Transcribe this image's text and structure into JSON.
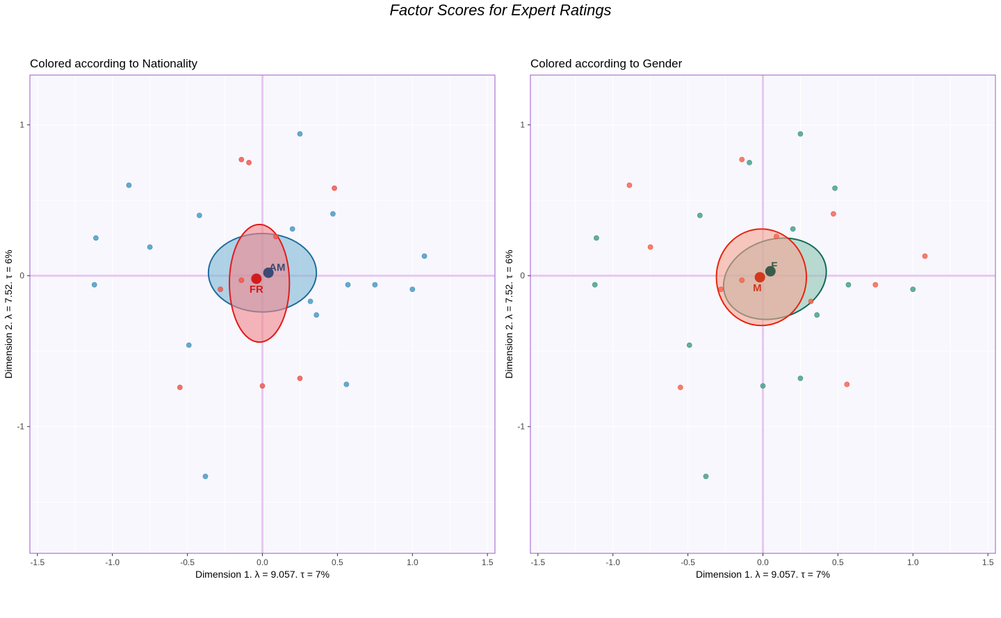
{
  "title": "Factor Scores for Expert Ratings",
  "colors": {
    "panel_bg": "#f8f7fd",
    "border": "#9b59c9",
    "origin_line": "#e6c8ef",
    "grid": "#ffffff"
  },
  "chart_data": [
    {
      "type": "scatter",
      "title": "Colored according to Nationality",
      "xlabel": "Dimension 1.   λ = 9.057.  τ = 7%",
      "ylabel": "Dimension 2.   λ = 7.52.  τ = 6%",
      "xlim": [
        -1.55,
        1.55
      ],
      "ylim": [
        -1.84,
        1.33
      ],
      "xticks": [
        -1.5,
        -1.0,
        -0.5,
        0.0,
        0.5,
        1.0,
        1.5
      ],
      "xtick_labels": [
        "-1.5",
        "-1.0",
        "-0.5",
        "0.0",
        "0.5",
        "1.0",
        "1.5"
      ],
      "yticks": [
        -1,
        0,
        1
      ],
      "ytick_labels": [
        "-1",
        "0",
        "1"
      ],
      "grid": true,
      "series": [
        {
          "name": "AM",
          "color": "#4a9cc4",
          "mean_color": "#3d4a73",
          "fill": "#7fb7d6",
          "stroke": "#1f6d9e",
          "mean": [
            0.04,
            0.02
          ],
          "ellipse": {
            "cx": 0.0,
            "cy": 0.02,
            "rx": 0.36,
            "ry": 0.26,
            "angle": 0
          },
          "points": [
            [
              0.25,
              0.94
            ],
            [
              -0.89,
              0.6
            ],
            [
              -0.42,
              0.4
            ],
            [
              -1.11,
              0.25
            ],
            [
              -0.75,
              0.19
            ],
            [
              0.2,
              0.31
            ],
            [
              0.47,
              0.41
            ],
            [
              1.08,
              0.13
            ],
            [
              0.57,
              -0.06
            ],
            [
              0.75,
              -0.06
            ],
            [
              1.0,
              -0.09
            ],
            [
              -1.12,
              -0.06
            ],
            [
              0.32,
              -0.17
            ],
            [
              0.36,
              -0.26
            ],
            [
              -0.49,
              -0.46
            ],
            [
              0.56,
              -0.72
            ],
            [
              -0.38,
              -1.33
            ]
          ]
        },
        {
          "name": "FR",
          "color": "#ee5a4e",
          "mean_color": "#d01c1c",
          "fill": "#f2868a",
          "stroke": "#e01b1b",
          "mean": [
            -0.04,
            -0.02
          ],
          "ellipse": {
            "cx": -0.02,
            "cy": -0.05,
            "rx": 0.2,
            "ry": 0.39,
            "angle": 0
          },
          "points": [
            [
              -0.14,
              0.77
            ],
            [
              -0.09,
              0.75
            ],
            [
              0.48,
              0.58
            ],
            [
              0.09,
              0.26
            ],
            [
              -0.14,
              -0.03
            ],
            [
              -0.28,
              -0.09
            ],
            [
              -0.55,
              -0.74
            ],
            [
              0.0,
              -0.73
            ],
            [
              0.25,
              -0.68
            ]
          ]
        }
      ]
    },
    {
      "type": "scatter",
      "title": "Colored according to Gender",
      "xlabel": "Dimension 1.   λ = 9.057.  τ = 7%",
      "ylabel": "Dimension 2.   λ = 7.52.  τ = 6%",
      "xlim": [
        -1.55,
        1.55
      ],
      "ylim": [
        -1.84,
        1.33
      ],
      "xticks": [
        -1.5,
        -1.0,
        -0.5,
        0.0,
        0.5,
        1.0,
        1.5
      ],
      "xtick_labels": [
        "-1.5",
        "-1.0",
        "-0.5",
        "0.0",
        "0.5",
        "1.0",
        "1.5"
      ],
      "yticks": [
        -1,
        0,
        1
      ],
      "ytick_labels": [
        "-1",
        "0",
        "1"
      ],
      "grid": true,
      "series": [
        {
          "name": "F",
          "color": "#4aa18c",
          "mean_color": "#3b5b4a",
          "fill": "#8dc5b3",
          "stroke": "#0f6b5a",
          "mean": [
            0.05,
            0.03
          ],
          "ellipse": {
            "cx": 0.08,
            "cy": -0.02,
            "rx": 0.35,
            "ry": 0.26,
            "angle": -18
          },
          "points": [
            [
              0.25,
              0.94
            ],
            [
              -0.09,
              0.75
            ],
            [
              0.48,
              0.58
            ],
            [
              -0.42,
              0.4
            ],
            [
              0.2,
              0.31
            ],
            [
              -1.11,
              0.25
            ],
            [
              0.57,
              -0.06
            ],
            [
              1.0,
              -0.09
            ],
            [
              -1.12,
              -0.06
            ],
            [
              0.36,
              -0.26
            ],
            [
              -0.49,
              -0.46
            ],
            [
              0.25,
              -0.68
            ],
            [
              0.0,
              -0.73
            ],
            [
              -0.38,
              -1.33
            ]
          ]
        },
        {
          "name": "M",
          "color": "#f26a55",
          "mean_color": "#d0391c",
          "fill": "#f5a593",
          "stroke": "#e8240f",
          "mean": [
            -0.02,
            -0.01
          ],
          "ellipse": {
            "cx": -0.01,
            "cy": -0.01,
            "rx": 0.3,
            "ry": 0.32,
            "angle": 0
          },
          "points": [
            [
              -0.14,
              0.77
            ],
            [
              -0.89,
              0.6
            ],
            [
              0.47,
              0.41
            ],
            [
              -0.75,
              0.19
            ],
            [
              0.09,
              0.26
            ],
            [
              1.08,
              0.13
            ],
            [
              0.75,
              -0.06
            ],
            [
              -0.14,
              -0.03
            ],
            [
              -0.28,
              -0.09
            ],
            [
              0.32,
              -0.17
            ],
            [
              0.56,
              -0.72
            ],
            [
              -0.55,
              -0.74
            ]
          ]
        }
      ]
    }
  ]
}
